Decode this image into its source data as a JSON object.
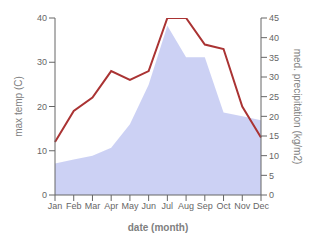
{
  "chart_data": {
    "type": "line",
    "categories": [
      "Jan",
      "Feb",
      "Mar",
      "Apr",
      "May",
      "Jun",
      "Jul",
      "Aug",
      "Sep",
      "Oct",
      "Nov",
      "Dec"
    ],
    "xlabel": "date (month)",
    "ylabel": "max temp (C)",
    "y2label": "med. precipitation (kg/m2)",
    "series": [
      {
        "type": "area",
        "color": "#b0b8ee",
        "axis": "y2",
        "values": [
          8,
          9,
          10,
          12,
          18,
          28,
          43,
          35,
          35,
          21,
          20,
          19
        ]
      },
      {
        "type": "line",
        "color": "#aa3333",
        "values": [
          12,
          19,
          22,
          28,
          26,
          28,
          40,
          40,
          34,
          33,
          20,
          13
        ]
      }
    ],
    "ylim": [
      0,
      40
    ],
    "yticks": [
      0,
      10,
      20,
      30,
      40
    ],
    "y2lim": [
      0,
      45
    ],
    "y2ticks": [
      0,
      5,
      10,
      15,
      20,
      25,
      30,
      35,
      40,
      45
    ],
    "grid": false
  }
}
